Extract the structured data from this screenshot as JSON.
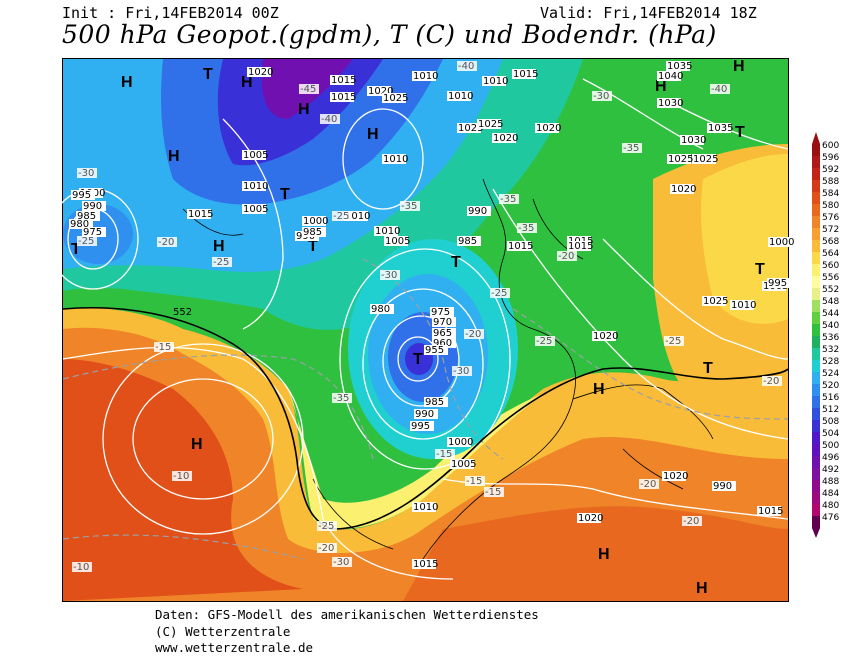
{
  "header": {
    "init": "Init : Fri,14FEB2014 00Z",
    "valid": "Valid: Fri,14FEB2014 18Z",
    "title": "500 hPa Geopot.(gpdm), T (C) und Bodendr. (hPa)"
  },
  "footer": {
    "line1": "Daten: GFS-Modell des amerikanischen Wetterdienstes",
    "line2": "(C) Wetterzentrale",
    "line3": "www.wetterzentrale.de"
  },
  "colorbar": {
    "values": [
      "600",
      "596",
      "592",
      "588",
      "584",
      "580",
      "576",
      "572",
      "568",
      "564",
      "560",
      "556",
      "552",
      "548",
      "544",
      "540",
      "536",
      "532",
      "528",
      "524",
      "520",
      "516",
      "512",
      "508",
      "504",
      "500",
      "496",
      "492",
      "488",
      "484",
      "480",
      "476"
    ],
    "colors": [
      "#9a1010",
      "#b01818",
      "#c42418",
      "#d43a18",
      "#e05018",
      "#e86820",
      "#ef8428",
      "#f5a030",
      "#f8bc38",
      "#fbd848",
      "#fcf070",
      "#fffca0",
      "#e8f088",
      "#a0e060",
      "#60d040",
      "#30c040",
      "#20b060",
      "#20c8a0",
      "#20d0d0",
      "#30b0f0",
      "#3090f0",
      "#3070e8",
      "#3050e0",
      "#3a30d8",
      "#5018c8",
      "#6010c0",
      "#7010b0",
      "#8010a0",
      "#900890",
      "#a00880",
      "#b00870",
      "#600050"
    ]
  },
  "map": {
    "high_labels": [
      "H",
      "H",
      "H",
      "H",
      "H",
      "H",
      "H",
      "H",
      "H",
      "H",
      "H",
      "H"
    ],
    "low_labels": [
      "T",
      "T",
      "T",
      "T",
      "T",
      "T",
      "T",
      "T",
      "T"
    ],
    "pressure_labels": [
      "1020",
      "1015",
      "1015",
      "1020",
      "1025",
      "1010",
      "1025",
      "1005",
      "1010",
      "1005",
      "1000",
      "995",
      "990",
      "985",
      "980",
      "975",
      "990",
      "1015",
      "1010",
      "1000",
      "985",
      "1010",
      "1005",
      "985",
      "990",
      "980",
      "975",
      "970",
      "965",
      "960",
      "955",
      "985",
      "990",
      "995",
      "1000",
      "1005",
      "1010",
      "1015",
      "1025",
      "1030",
      "1035",
      "1030",
      "1025",
      "1020",
      "1015",
      "1010",
      "1005",
      "1000",
      "995",
      "990",
      "1015",
      "1010",
      "1015",
      "1010",
      "1020",
      "1040",
      "1035",
      "1025",
      "1020",
      "1020",
      "1015",
      "1025",
      "1020",
      "1010",
      "1015",
      "1020"
    ],
    "temp_labels": [
      "-45",
      "-40",
      "-40",
      "-35",
      "-35",
      "-30",
      "-30",
      "-25",
      "-25",
      "-20",
      "-20",
      "-15",
      "-15",
      "-10",
      "-10",
      "-25",
      "-20",
      "-30",
      "-35",
      "-25",
      "-20",
      "-25",
      "-15",
      "-15",
      "-20",
      "-25",
      "-30",
      "-35",
      "-40",
      "-30",
      "-35",
      "-25",
      "-20",
      "-20"
    ],
    "contour_label": "552"
  }
}
